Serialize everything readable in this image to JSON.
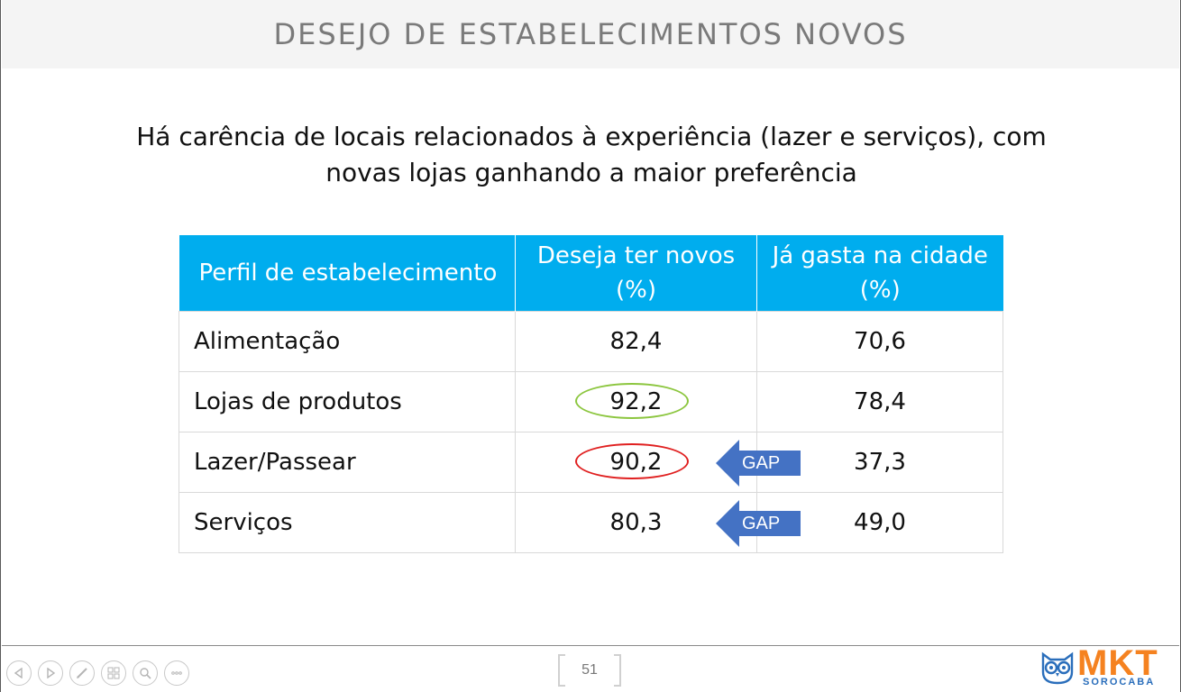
{
  "slide": {
    "title": "DESEJO DE ESTABELECIMENTOS NOVOS",
    "subtitle_line1": "Há carência de locais relacionados à experiência (lazer e serviços), com",
    "subtitle_line2": "novas lojas ganhando a maior preferência"
  },
  "table": {
    "headers": [
      "Perfil de estabelecimento",
      "Deseja ter novos (%)",
      "Já gasta na cidade (%)"
    ],
    "rows": [
      {
        "profile": "Alimentação",
        "want_new": "82,4",
        "spend": "70,6",
        "highlight": "",
        "gap": ""
      },
      {
        "profile": "Lojas de produtos",
        "want_new": "92,2",
        "spend": "78,4",
        "highlight": "green",
        "gap": ""
      },
      {
        "profile": "Lazer/Passear",
        "want_new": "90,2",
        "spend": "37,3",
        "highlight": "red",
        "gap": "GAP"
      },
      {
        "profile": "Serviços",
        "want_new": "80,3",
        "spend": "49,0",
        "highlight": "",
        "gap": "GAP"
      }
    ]
  },
  "footer": {
    "page_number": "51",
    "logo_text": "MKT",
    "logo_subtext": "SOROCABA"
  },
  "colors": {
    "header_bg": "#00adee",
    "arrow": "#4472c4",
    "ring_green": "#8cc63f",
    "ring_red": "#e02020",
    "logo_orange": "#f58220",
    "logo_blue": "#2a6ebb"
  },
  "controls": [
    "previous-slide-icon",
    "next-slide-icon",
    "pen-icon",
    "slides-grid-icon",
    "zoom-icon",
    "more-options-icon"
  ]
}
